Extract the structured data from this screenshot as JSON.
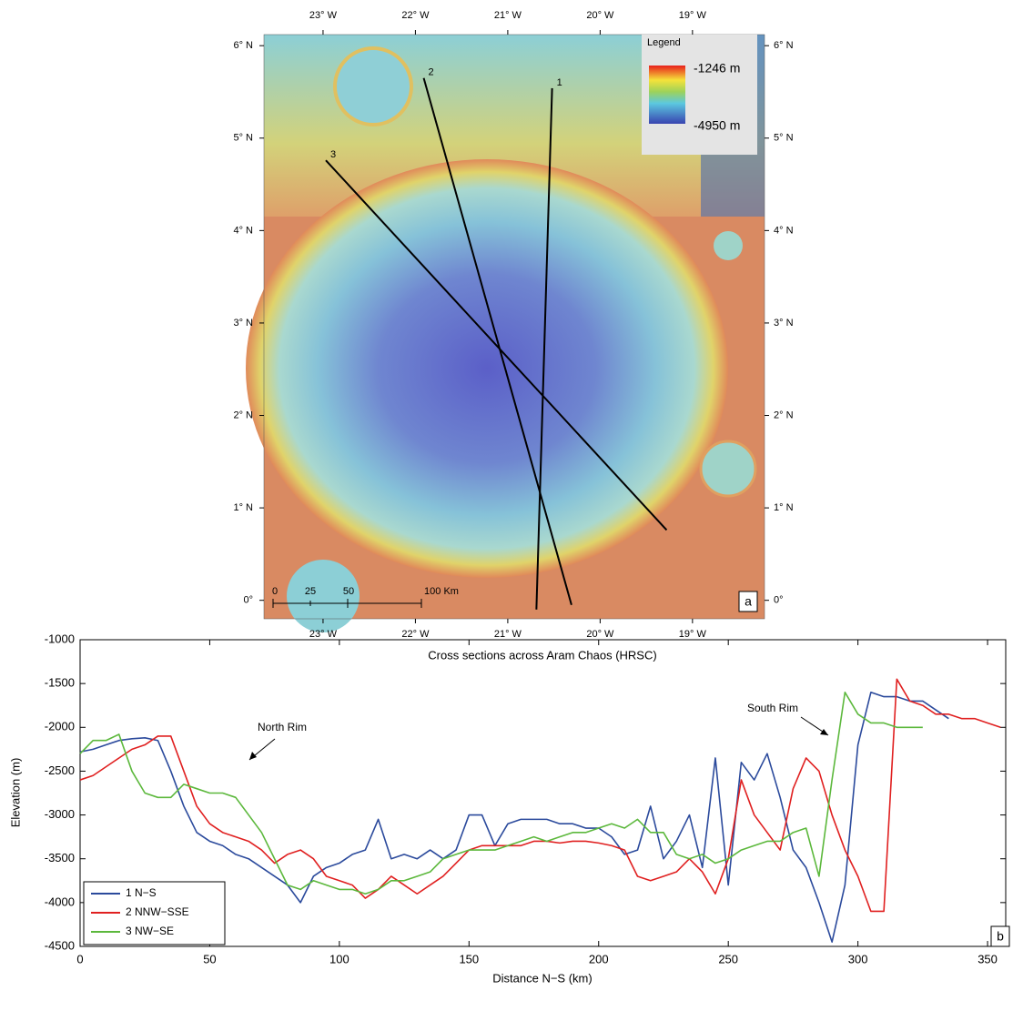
{
  "chart_data": [
    {
      "type": "map",
      "xlim": [
        -23.64,
        -18.22
      ],
      "ylim": [
        -0.2,
        6.12
      ],
      "xticks": [
        {
          "value": -23,
          "label": "23° W"
        },
        {
          "value": -22,
          "label": "22° W"
        },
        {
          "value": -21,
          "label": "21° W"
        },
        {
          "value": -20,
          "label": "20° W"
        },
        {
          "value": -19,
          "label": "19° W"
        }
      ],
      "yticks": [
        {
          "value": 0,
          "label": "0°"
        },
        {
          "value": 1,
          "label": "1° N"
        },
        {
          "value": 2,
          "label": "2° N"
        },
        {
          "value": 3,
          "label": "3° N"
        },
        {
          "value": 4,
          "label": "4° N"
        },
        {
          "value": 5,
          "label": "5° N"
        },
        {
          "value": 6,
          "label": "6° N"
        }
      ],
      "series": [
        {
          "name": "1",
          "color": "#000000",
          "x": [
            -20.52,
            -20.69
          ],
          "values": [
            5.54,
            -0.1
          ]
        },
        {
          "name": "2",
          "color": "#000000",
          "x": [
            -21.91,
            -20.31
          ],
          "values": [
            5.65,
            -0.05
          ]
        },
        {
          "name": "3",
          "color": "#000000",
          "x": [
            -22.97,
            -19.28
          ],
          "values": [
            4.76,
            0.76
          ]
        }
      ],
      "legend": {
        "title": "Legend",
        "max_label": "-1246 m",
        "min_label": "-4950 m"
      },
      "scale_bar": [
        "0",
        "25",
        "50",
        "100 Km"
      ],
      "panel_label": "a"
    },
    {
      "type": "line",
      "title": "Cross sections across Aram Chaos (HRSC)",
      "xlabel": "Distance N−S (km)",
      "ylabel": "Elevation (m)",
      "xlim": [
        0,
        357
      ],
      "ylim": [
        -4500,
        -1000
      ],
      "xticks": [
        0,
        50,
        100,
        150,
        200,
        250,
        300,
        350
      ],
      "yticks": [
        -4500,
        -4000,
        -3500,
        -3000,
        -2500,
        -2000,
        -1500,
        -1000
      ],
      "legend": "lower left",
      "x": [
        0,
        5,
        10,
        15,
        20,
        25,
        30,
        35,
        40,
        45,
        50,
        55,
        60,
        65,
        70,
        75,
        80,
        85,
        90,
        95,
        100,
        105,
        110,
        115,
        120,
        125,
        130,
        135,
        140,
        145,
        150,
        155,
        160,
        165,
        170,
        175,
        180,
        185,
        190,
        195,
        200,
        205,
        210,
        215,
        220,
        225,
        230,
        235,
        240,
        245,
        250,
        255,
        260,
        265,
        270,
        275,
        280,
        285,
        290,
        295,
        300,
        305,
        310,
        315,
        320,
        325,
        330,
        335,
        340,
        345,
        350,
        355
      ],
      "series": [
        {
          "name": "1 N−S",
          "color": "#2b4a9c",
          "values": [
            -2280,
            -2250,
            -2200,
            -2150,
            -2130,
            -2120,
            -2150,
            -2500,
            -2900,
            -3200,
            -3300,
            -3350,
            -3450,
            -3500,
            -3600,
            -3700,
            -3800,
            -4000,
            -3700,
            -3600,
            -3550,
            -3450,
            -3400,
            -3050,
            -3500,
            -3450,
            -3500,
            -3400,
            -3500,
            -3400,
            -3000,
            -3000,
            -3350,
            -3100,
            -3050,
            -3050,
            -3050,
            -3100,
            -3100,
            -3150,
            -3150,
            -3250,
            -3450,
            -3400,
            -2900,
            -3500,
            -3300,
            -3000,
            -3600,
            -2350,
            -3800,
            -2400,
            -2600,
            -2300,
            -2800,
            -3400,
            -3600,
            -4000,
            -4450,
            -3800,
            -2200,
            -1600,
            -1650,
            -1650,
            -1700,
            -1700,
            -1800,
            -1900,
            null,
            null,
            null,
            null
          ]
        },
        {
          "name": "2 NNW−SSE",
          "color": "#e02020",
          "values": [
            -2600,
            -2550,
            -2450,
            -2350,
            -2250,
            -2200,
            -2100,
            -2100,
            -2500,
            -2900,
            -3100,
            -3200,
            -3250,
            -3300,
            -3400,
            -3550,
            -3450,
            -3400,
            -3500,
            -3700,
            -3750,
            -3800,
            -3950,
            -3850,
            -3700,
            -3800,
            -3900,
            -3800,
            -3700,
            -3550,
            -3400,
            -3350,
            -3350,
            -3350,
            -3350,
            -3300,
            -3300,
            -3320,
            -3300,
            -3300,
            -3320,
            -3350,
            -3400,
            -3700,
            -3750,
            -3700,
            -3650,
            -3500,
            -3650,
            -3900,
            -3500,
            -2600,
            -3000,
            -3200,
            -3400,
            -2700,
            -2350,
            -2500,
            -3000,
            -3400,
            -3700,
            -4100,
            -4100,
            -1450,
            -1700,
            -1750,
            -1850,
            -1850,
            -1900,
            -1900,
            -1950,
            -2000
          ]
        },
        {
          "name": "3 NW−SE",
          "color": "#5cb83c",
          "values": [
            -2300,
            -2150,
            -2150,
            -2080,
            -2500,
            -2750,
            -2800,
            -2800,
            -2650,
            -2700,
            -2750,
            -2750,
            -2800,
            -3000,
            -3200,
            -3500,
            -3800,
            -3850,
            -3750,
            -3800,
            -3850,
            -3850,
            -3900,
            -3850,
            -3750,
            -3750,
            -3700,
            -3650,
            -3500,
            -3450,
            -3400,
            -3400,
            -3400,
            -3350,
            -3300,
            -3250,
            -3300,
            -3250,
            -3200,
            -3200,
            -3150,
            -3100,
            -3150,
            -3050,
            -3200,
            -3200,
            -3450,
            -3500,
            -3450,
            -3550,
            -3500,
            -3400,
            -3350,
            -3300,
            -3300,
            -3200,
            -3150,
            -3700,
            -2600,
            -1600,
            -1850,
            -1950,
            -1950,
            -2000,
            -2000,
            -2000,
            null,
            null,
            null,
            null,
            null,
            null
          ]
        }
      ],
      "annotations": [
        "North Rim",
        "South Rim"
      ],
      "panel_label": "b"
    }
  ]
}
